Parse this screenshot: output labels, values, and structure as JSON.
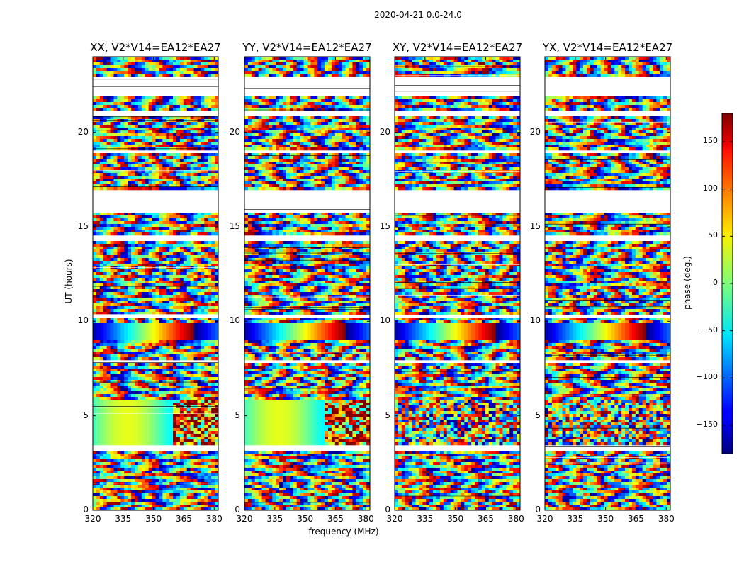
{
  "figure_title": "2020-04-21 0.0-24.0",
  "chart_data": {
    "type": "heatmap",
    "title": "2020-04-21 0.0-24.0",
    "xlabel": "frequency (MHz)",
    "ylabel": "UT (hours)",
    "xlim": [
      320,
      382
    ],
    "ylim": [
      0,
      24
    ],
    "x_ticks": [
      320,
      335,
      350,
      365,
      380
    ],
    "y_ticks": [
      0,
      5,
      10,
      15,
      20
    ],
    "panels": [
      {
        "title": "XX, V2*V14=EA12*EA27"
      },
      {
        "title": "YY, V2*V14=EA12*EA27"
      },
      {
        "title": "XY, V2*V14=EA12*EA27"
      },
      {
        "title": "YX, V2*V14=EA12*EA27"
      }
    ],
    "colorbar": {
      "label": "phase (deg.)",
      "range": [
        -180,
        180
      ],
      "ticks": [
        -150,
        -100,
        -50,
        0,
        50,
        100,
        150
      ],
      "tick_labels": [
        "−150",
        "−100",
        "−50",
        "0",
        "50",
        "100",
        "150"
      ],
      "colormap": "jet"
    },
    "flagged_ut_ranges": [
      [
        3.2,
        3.4
      ],
      [
        7.8,
        7.9
      ],
      [
        10.2,
        10.3
      ],
      [
        14.3,
        14.5
      ],
      [
        15.8,
        17.0
      ],
      [
        18.9,
        19.0
      ],
      [
        20.9,
        21.2
      ],
      [
        21.9,
        22.9
      ]
    ],
    "coherent_ut_ranges": [
      [
        3.4,
        5.9
      ],
      [
        9.0,
        9.9
      ]
    ]
  }
}
